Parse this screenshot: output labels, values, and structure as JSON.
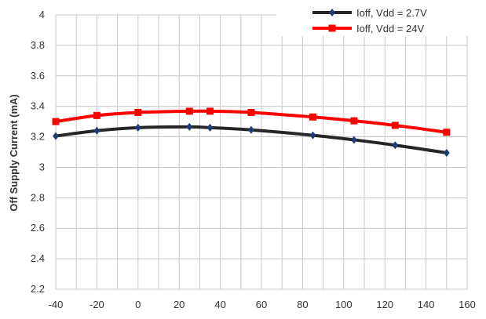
{
  "chart_data": {
    "type": "line",
    "title": "",
    "xlabel": "",
    "ylabel": "Off Supply Current  (mA)",
    "xlim": [
      -40,
      160
    ],
    "ylim": [
      2.2,
      4
    ],
    "x_ticks": [
      "-40",
      "-20",
      "0",
      "20",
      "40",
      "60",
      "80",
      "100",
      "120",
      "140",
      "160"
    ],
    "y_ticks": [
      "2.2",
      "2.4",
      "2.6",
      "2.8",
      "3",
      "3.2",
      "3.4",
      "3.6",
      "3.8",
      "4"
    ],
    "x_tick_values": [
      -40,
      -20,
      0,
      20,
      40,
      60,
      80,
      100,
      120,
      140,
      160
    ],
    "y_tick_values": [
      2.2,
      2.4,
      2.6,
      2.8,
      3.0,
      3.2,
      3.4,
      3.6,
      3.8,
      4.0
    ],
    "x_minor_step": 10,
    "grid": true,
    "legend": "top-right",
    "series": [
      {
        "name": "Ioff, Vdd = 2.7V",
        "color": "#262626",
        "marker_color": "#1f3b73",
        "marker": "diamond",
        "x": [
          -40,
          -20,
          0,
          25,
          35,
          55,
          85,
          105,
          125,
          150
        ],
        "values": [
          3.205,
          3.24,
          3.26,
          3.265,
          3.26,
          3.245,
          3.21,
          3.18,
          3.145,
          3.095
        ]
      },
      {
        "name": "Ioff, Vdd = 24V",
        "color": "#ff0000",
        "marker_color": "#ff0000",
        "marker": "square",
        "x": [
          -40,
          -20,
          0,
          25,
          35,
          55,
          85,
          105,
          125,
          150
        ],
        "values": [
          3.3,
          3.34,
          3.36,
          3.368,
          3.368,
          3.36,
          3.33,
          3.305,
          3.275,
          3.23
        ]
      }
    ]
  }
}
